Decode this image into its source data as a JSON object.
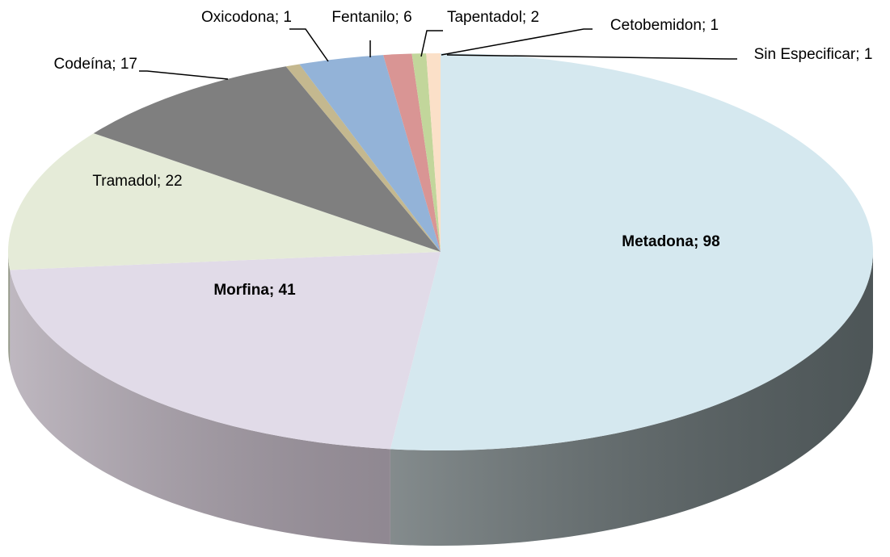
{
  "chart_data": {
    "type": "pie",
    "three_d": true,
    "values": [
      98,
      41,
      22,
      17,
      1,
      6,
      2,
      1,
      1
    ],
    "value_labels": [
      "Metadona; 98",
      "Morfina; 41",
      "Tramadol; 22",
      "Codeína; 17",
      "Oxicodona; 1",
      "Fentanilo; 6",
      "Tapentadol; 2",
      "Cetobemidon; 1",
      "Sin Especificar; 1"
    ],
    "colors": [
      "#d5e8ef",
      "#e1dbe8",
      "#e5ebd8",
      "#7f7f7f",
      "#c4b88f",
      "#93b3d8",
      "#d99594",
      "#c2d69b",
      "#fbe0c8"
    ],
    "side_colors": [
      "#5b6567",
      "#a9a0ab",
      "#a5aa98",
      "#555555",
      "#8a8060",
      "#5f7ea3",
      "#a06362",
      "#869a60",
      "#c0a88f"
    ]
  }
}
